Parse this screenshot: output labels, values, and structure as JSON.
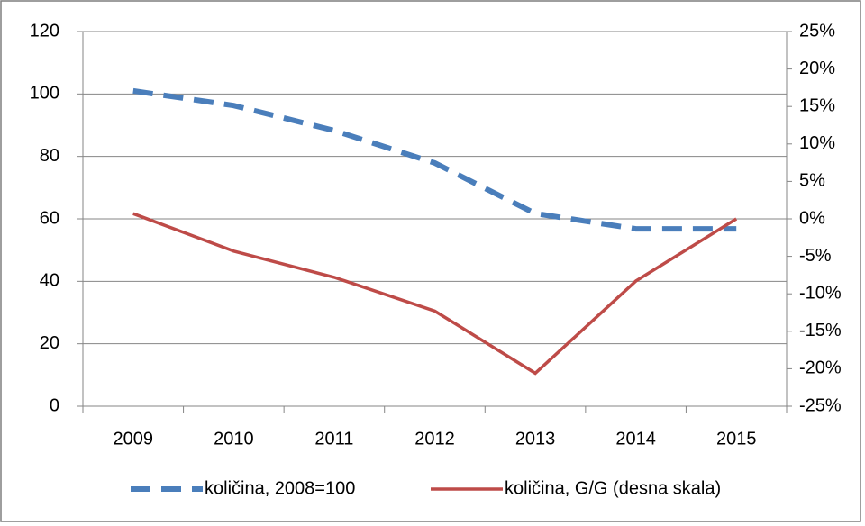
{
  "chart_data": {
    "type": "line",
    "categories": [
      "2009",
      "2010",
      "2011",
      "2012",
      "2013",
      "2014",
      "2015"
    ],
    "series": [
      {
        "name": "količina, 2008=100",
        "color": "#4a7ebb",
        "dashed": true,
        "values": [
          101,
          96.3,
          88.3,
          77.9,
          61.7,
          56.8,
          56.8
        ]
      },
      {
        "name": "količina, G/G (desna skala)",
        "color": "#be4b48",
        "axis": "y2",
        "values": [
          0.7,
          -4.3,
          -7.8,
          -12.3,
          -20.6,
          -8.3,
          0
        ]
      }
    ],
    "ylim": [
      0,
      120
    ],
    "yticks": [
      0,
      20,
      40,
      60,
      80,
      100,
      120
    ],
    "y2lim": [
      -25,
      25
    ],
    "y2ticks": [
      {
        "value": -25,
        "label": "-25%"
      },
      {
        "value": -20,
        "label": "-20%"
      },
      {
        "value": -15,
        "label": "-15%"
      },
      {
        "value": -10,
        "label": "-10%"
      },
      {
        "value": -5,
        "label": "-5%"
      },
      {
        "value": 0,
        "label": "0%"
      },
      {
        "value": 5,
        "label": "5%"
      },
      {
        "value": 10,
        "label": "10%"
      },
      {
        "value": 15,
        "label": "15%"
      },
      {
        "value": 20,
        "label": "20%"
      },
      {
        "value": 25,
        "label": "25%"
      }
    ],
    "grid": true,
    "legend": "bottom"
  }
}
